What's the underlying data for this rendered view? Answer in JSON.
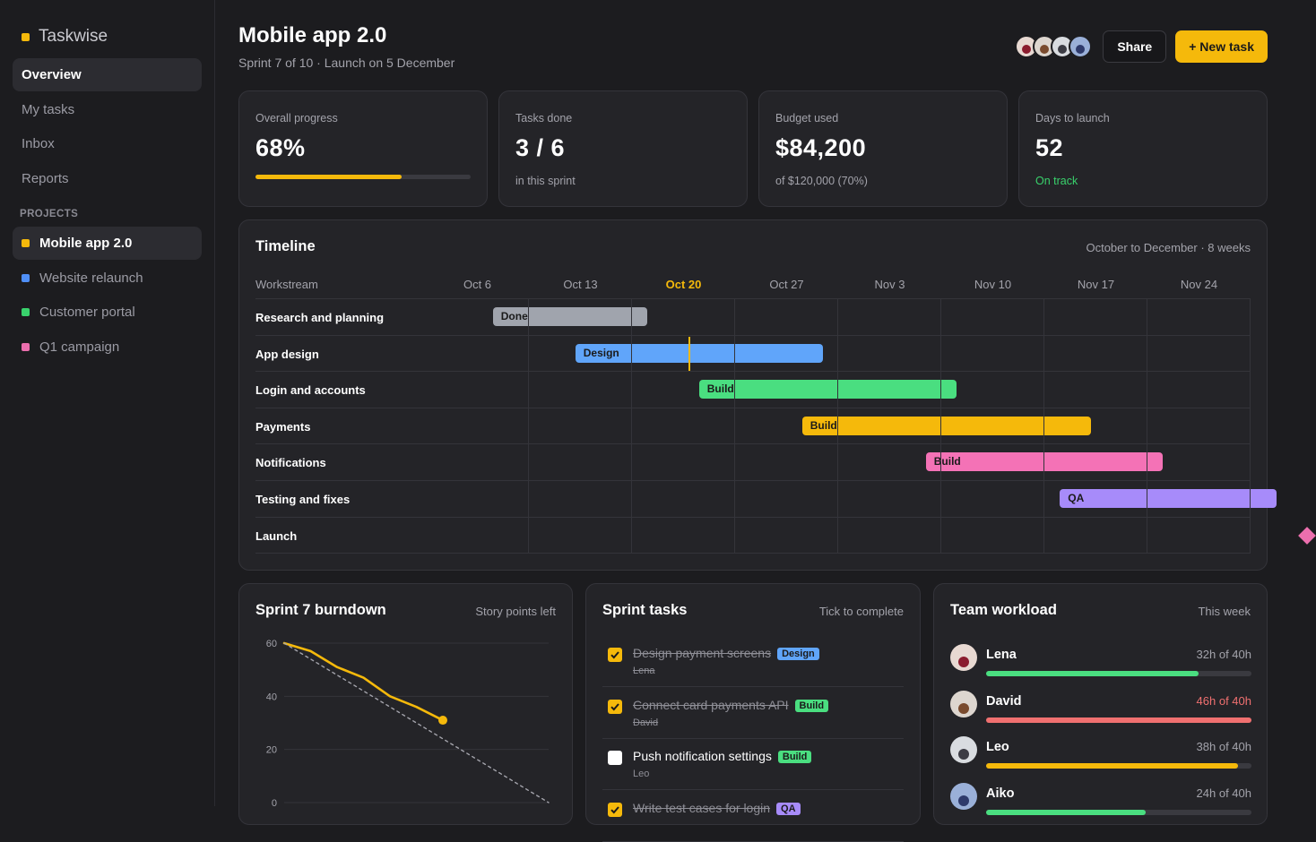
{
  "app": {
    "name": "Taskwise",
    "accent": "#f5b90b"
  },
  "sidebar": {
    "nav": [
      {
        "label": "Overview",
        "active": true
      },
      {
        "label": "My tasks"
      },
      {
        "label": "Inbox"
      },
      {
        "label": "Reports"
      }
    ],
    "projects_label": "PROJECTS",
    "projects": [
      {
        "label": "Mobile app 2.0",
        "color": "#f5b90b",
        "active": true
      },
      {
        "label": "Website relaunch",
        "color": "#4f8ff7"
      },
      {
        "label": "Customer portal",
        "color": "#39d26c"
      },
      {
        "label": "Q1 campaign",
        "color": "#ec6fae"
      }
    ]
  },
  "header": {
    "title": "Mobile app 2.0",
    "subtitle": "Sprint 7 of 10 · Launch on 5 December",
    "share_label": "Share",
    "new_task_label": "+ New task"
  },
  "stats": {
    "progress": {
      "label": "Overall progress",
      "value": "68%",
      "fraction": 0.68
    },
    "tasks": {
      "label": "Tasks done",
      "value": "3 / 6",
      "sub": "in this sprint"
    },
    "budget": {
      "label": "Budget used",
      "value": "$84,200",
      "sub": "of $120,000 (70%)"
    },
    "launch": {
      "label": "Days to launch",
      "value": "52",
      "sub": "On track",
      "sub_color": "#39d26c"
    }
  },
  "timeline": {
    "title": "Timeline",
    "meta": "October to December · 8 weeks",
    "column_label": "Workstream",
    "weeks": [
      "Oct 6",
      "Oct 13",
      "Oct 20",
      "Oct 27",
      "Nov 3",
      "Nov 10",
      "Nov 17",
      "Nov 24"
    ],
    "current_week": "Oct 20",
    "rows": [
      {
        "name": "Research and planning",
        "bar_label": "Done",
        "color": "#a0a4ad",
        "start": 0.65,
        "end": 2.15
      },
      {
        "name": "App design",
        "bar_label": "Design",
        "color": "#60a5fa",
        "start": 1.45,
        "end": 3.85
      },
      {
        "name": "Login and accounts",
        "bar_label": "Build",
        "color": "#4ade80",
        "start": 2.65,
        "end": 5.15
      },
      {
        "name": "Payments",
        "bar_label": "Build",
        "color": "#f5b90b",
        "start": 3.65,
        "end": 6.45
      },
      {
        "name": "Notifications",
        "bar_label": "Build",
        "color": "#f472b6",
        "start": 4.85,
        "end": 7.15
      },
      {
        "name": "Testing and fixes",
        "bar_label": "QA",
        "color": "#a78bfa",
        "start": 6.15,
        "end": 8.25
      },
      {
        "name": "Launch",
        "milestone": true,
        "at": 8.55,
        "color": "#ec6fae"
      }
    ],
    "today": 2.55
  },
  "burndown": {
    "title": "Sprint 7 burndown",
    "meta": "Story points left",
    "chart_data": {
      "type": "line",
      "ylim": [
        0,
        60
      ],
      "yticks": [
        0,
        20,
        40,
        60
      ],
      "xlim": [
        0,
        10
      ],
      "series": [
        {
          "values_x": [
            0,
            1,
            2,
            3,
            4,
            5,
            6
          ],
          "values": [
            60,
            57,
            51,
            47,
            40,
            36,
            31
          ],
          "color": "#f5b90b"
        },
        {
          "values_x": [
            0,
            10
          ],
          "values": [
            60,
            0
          ],
          "color": "#a3a3ab",
          "dashed": true
        }
      ]
    }
  },
  "tasks": {
    "title": "Sprint tasks",
    "meta": "Tick to complete",
    "items": [
      {
        "name": "Design payment screens",
        "tag": "Design",
        "tag_color": "#60a5fa",
        "assignee": "Lena",
        "done": true
      },
      {
        "name": "Connect card payments API",
        "tag": "Build",
        "tag_color": "#4ade80",
        "assignee": "David",
        "done": true
      },
      {
        "name": "Push notification settings",
        "tag": "Build",
        "tag_color": "#4ade80",
        "assignee": "Leo",
        "done": false
      },
      {
        "name": "Write test cases for login",
        "tag": "QA",
        "tag_color": "#a78bfa",
        "assignee": "",
        "done": true
      }
    ]
  },
  "workload": {
    "title": "Team workload",
    "meta": "This week",
    "members": [
      {
        "name": "Lena",
        "hours": "32h of 40h",
        "fraction": 0.8,
        "color": "#4ade80",
        "over": false,
        "avatar_bg": "#e8d9d2",
        "avatar_head": "#8b1c2e"
      },
      {
        "name": "David",
        "hours": "46h of 40h",
        "fraction": 1.0,
        "color": "#f07070",
        "over": true,
        "avatar_bg": "#ddd6cf",
        "avatar_head": "#7a4b2e"
      },
      {
        "name": "Leo",
        "hours": "38h of 40h",
        "fraction": 0.95,
        "color": "#f5b90b",
        "over": false,
        "avatar_bg": "#d9dce0",
        "avatar_head": "#3c3c44"
      },
      {
        "name": "Aiko",
        "hours": "24h of 40h",
        "fraction": 0.6,
        "color": "#4ade80",
        "over": false,
        "avatar_bg": "#9ab0d8",
        "avatar_head": "#2e3a6b"
      }
    ]
  },
  "header_avatars": [
    {
      "bg": "#e8d9d2",
      "head": "#8b1c2e"
    },
    {
      "bg": "#ddd6cf",
      "head": "#7a4b2e"
    },
    {
      "bg": "#d9dce0",
      "head": "#3c3c44"
    },
    {
      "bg": "#9ab0d8",
      "head": "#2e3a6b"
    }
  ]
}
